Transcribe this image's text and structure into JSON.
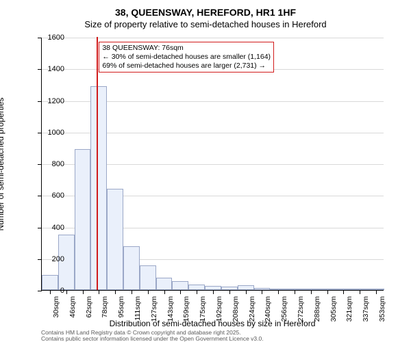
{
  "title_line1": "38, QUEENSWAY, HEREFORD, HR1 1HF",
  "title_line2": "Size of property relative to semi-detached houses in Hereford",
  "x_axis_label": "Distribution of semi-detached houses by size in Hereford",
  "y_axis_label": "Number of semi-detached properties",
  "footer_line1": "Contains HM Land Registry data © Crown copyright and database right 2025.",
  "footer_line2": "Contains public sector information licensed under the Open Government Licence v3.0.",
  "histogram": {
    "type": "histogram",
    "background_color": "#ffffff",
    "bar_fill": "#eaf0fb",
    "bar_border": "#9aa7c7",
    "grid_color": "#d9d9d9",
    "axis_color": "#000000",
    "marker_color": "#d11a1a",
    "ylim": [
      0,
      1600
    ],
    "ytick_step": 200,
    "x_bin_start": 22,
    "x_bin_width": 16,
    "n_bins": 21,
    "xtick_labels": [
      "30sqm",
      "46sqm",
      "62sqm",
      "78sqm",
      "95sqm",
      "111sqm",
      "127sqm",
      "143sqm",
      "159sqm",
      "175sqm",
      "192sqm",
      "208sqm",
      "224sqm",
      "240sqm",
      "256sqm",
      "272sqm",
      "288sqm",
      "305sqm",
      "321sqm",
      "337sqm",
      "353sqm"
    ],
    "values": [
      95,
      350,
      890,
      1290,
      640,
      275,
      155,
      80,
      55,
      35,
      25,
      20,
      30,
      15,
      10,
      5,
      3,
      3,
      2,
      2,
      2
    ],
    "marker_x_value": 76,
    "callout": {
      "line1": "38 QUEENSWAY: 76sqm",
      "line2": "← 30% of semi-detached houses are smaller (1,164)",
      "line3": "69% of semi-detached houses are larger (2,731) →"
    }
  },
  "fonts": {
    "title_size_pt": 14,
    "subtitle_size_pt": 13,
    "axis_label_size_pt": 12,
    "tick_label_size_pt": 11,
    "callout_size_pt": 10.5,
    "footer_size_pt": 8.5
  }
}
